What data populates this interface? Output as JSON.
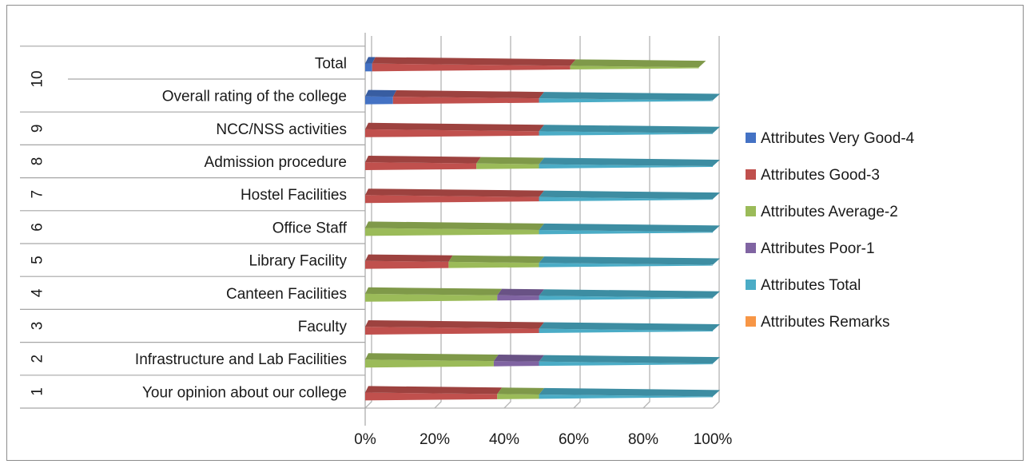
{
  "chart_data": {
    "type": "bar",
    "orientation": "horizontal",
    "stacking": "percent",
    "title": "",
    "xlabel": "",
    "ylabel": "",
    "xlim": [
      0,
      100
    ],
    "x_ticks": [
      "0%",
      "20%",
      "40%",
      "60%",
      "80%",
      "100%"
    ],
    "grid": true,
    "legend_position": "right",
    "groups": [
      {
        "label": "1",
        "members": [
          0
        ]
      },
      {
        "label": "2",
        "members": [
          1
        ]
      },
      {
        "label": "3",
        "members": [
          2
        ]
      },
      {
        "label": "4",
        "members": [
          3
        ]
      },
      {
        "label": "5",
        "members": [
          4
        ]
      },
      {
        "label": "6",
        "members": [
          5
        ]
      },
      {
        "label": "7",
        "members": [
          6
        ]
      },
      {
        "label": "8",
        "members": [
          7
        ]
      },
      {
        "label": "9",
        "members": [
          8
        ]
      },
      {
        "label": "10",
        "members": [
          9,
          10
        ]
      }
    ],
    "categories": [
      "Your opinion about our college",
      "Infrastructure and Lab Facilities",
      "Faculty",
      "Canteen Facilities",
      "Library Facility",
      "Office Staff",
      "Hostel Facilities",
      "Admission procedure",
      "NCC/NSS activities",
      "Overall rating of the college",
      "Total"
    ],
    "series": [
      {
        "name": "Attributes Very Good-4",
        "color": "#4472c4",
        "values": [
          0,
          0,
          0,
          0,
          0,
          0,
          0,
          0,
          0,
          8,
          2
        ]
      },
      {
        "name": "Attributes Good-3",
        "color": "#c0504d",
        "values": [
          38,
          0,
          50,
          0,
          24,
          0,
          50,
          32,
          50,
          42,
          57
        ]
      },
      {
        "name": "Attributes Average-2",
        "color": "#9bbb59",
        "values": [
          12,
          37,
          0,
          38,
          26,
          50,
          0,
          18,
          0,
          0,
          37
        ]
      },
      {
        "name": "Attributes Poor-1",
        "color": "#8064a2",
        "values": [
          0,
          13,
          0,
          12,
          0,
          0,
          0,
          0,
          0,
          0,
          0
        ]
      },
      {
        "name": "Attributes Total",
        "color": "#4bacc6",
        "values": [
          50,
          50,
          50,
          50,
          50,
          50,
          50,
          50,
          50,
          50,
          0
        ]
      },
      {
        "name": "Attributes Remarks",
        "color": "#f79646",
        "values": [
          0,
          0,
          0,
          0,
          0,
          0,
          0,
          0,
          0,
          0,
          0
        ]
      }
    ]
  }
}
